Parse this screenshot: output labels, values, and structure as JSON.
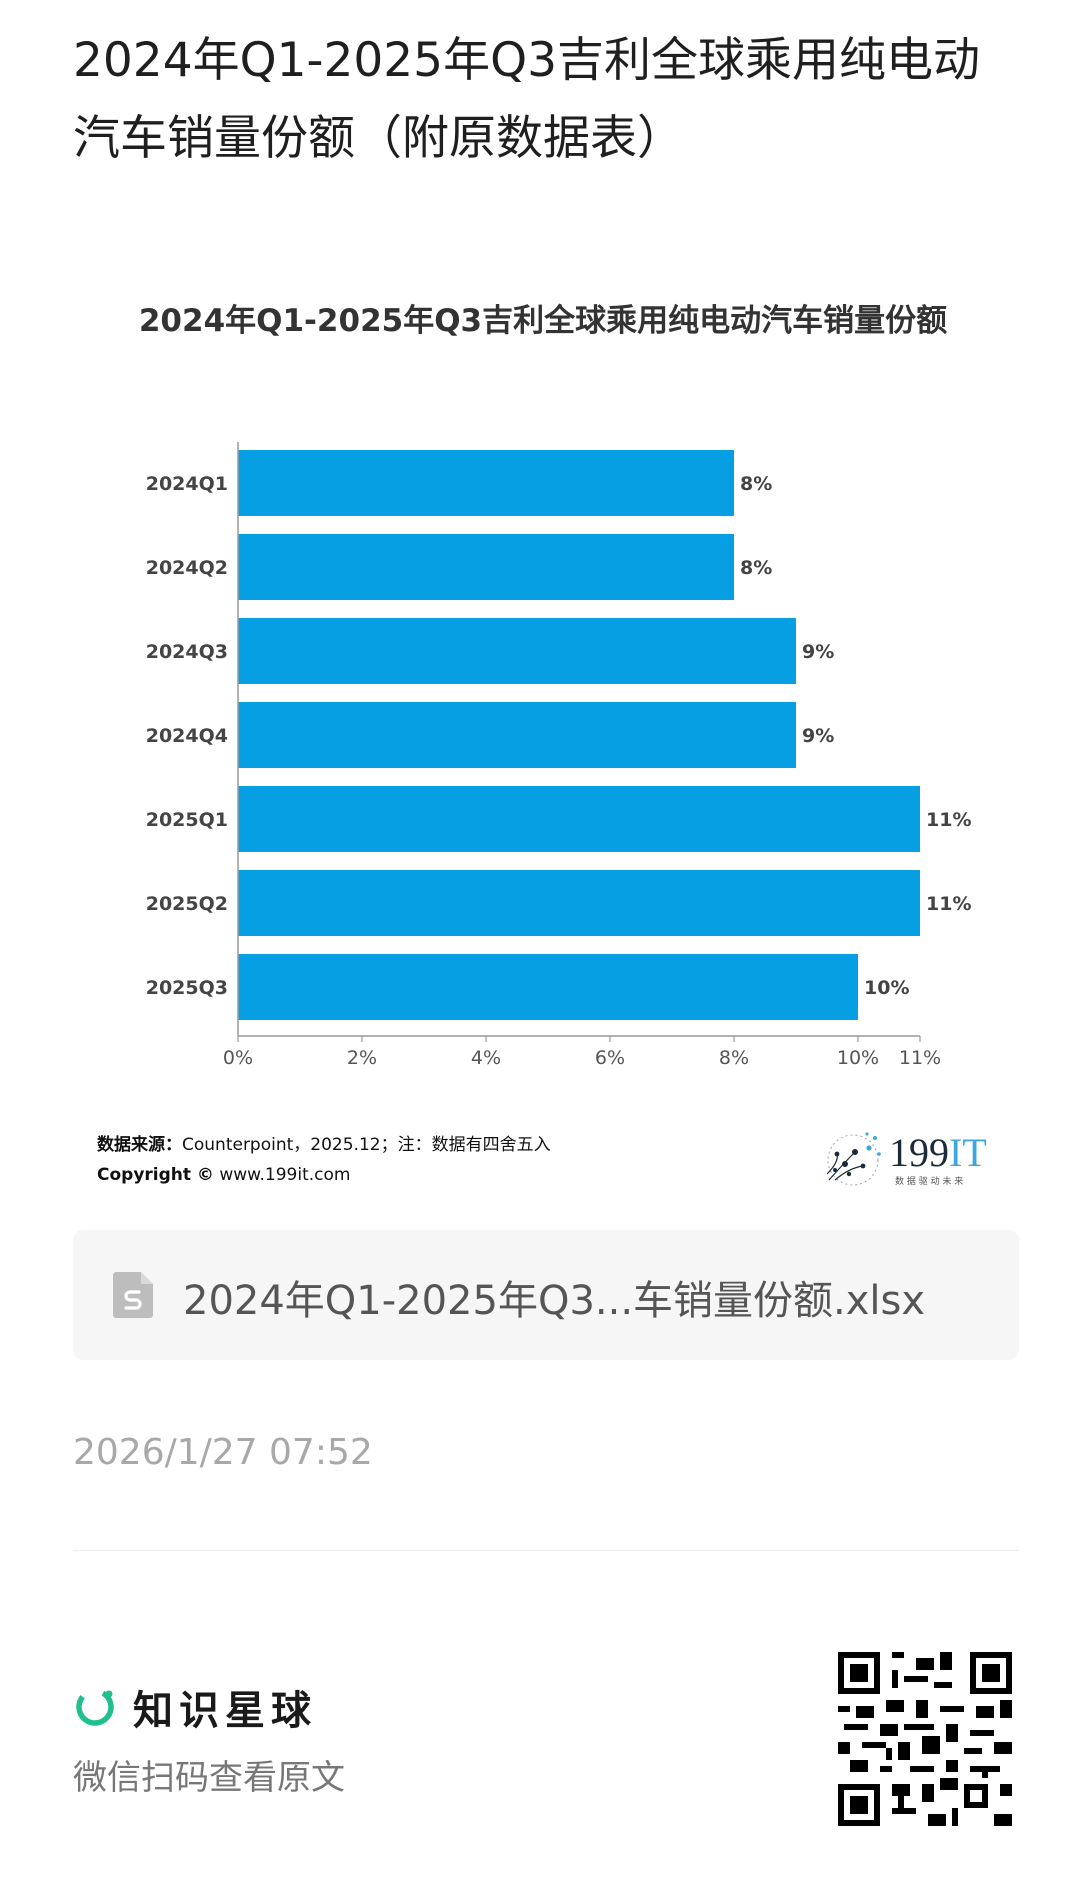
{
  "post": {
    "title": "2024年Q1-2025年Q3吉利全球乘用纯电动汽车销量份额（附原数据表）",
    "date": "2026/1/27 07:52"
  },
  "chart_data": {
    "type": "bar",
    "orientation": "horizontal",
    "title": "2024年Q1-2025年Q3吉利全球乘用纯电动汽车销量份额",
    "categories": [
      "2024Q1",
      "2024Q2",
      "2024Q3",
      "2024Q4",
      "2025Q1",
      "2025Q2",
      "2025Q3"
    ],
    "values": [
      8,
      8,
      9,
      9,
      11,
      11,
      10
    ],
    "data_labels": [
      "8%",
      "8%",
      "9%",
      "9%",
      "11%",
      "11%",
      "10%"
    ],
    "x_ticks": [
      "0%",
      "2%",
      "4%",
      "6%",
      "8%",
      "10%",
      "11%"
    ],
    "x_tick_values": [
      0,
      2,
      4,
      6,
      8,
      10,
      11
    ],
    "xlim": [
      0,
      11
    ],
    "bar_color": "#069fe3",
    "grid": false,
    "legend": "none"
  },
  "source": {
    "label": "数据来源：",
    "text": "Counterpoint，2025.12；注：数据有四舍五入",
    "copyright_label": "Copyright ©",
    "copyright_site": "www.199it.com"
  },
  "logo": {
    "name": "199IT",
    "slogan": "数 据 驱 动 未 来",
    "icon": "dandelion-logo-icon"
  },
  "attachment": {
    "filename": "2024年Q1-2025年Q3...车销量份额.xlsx",
    "icon": "spreadsheet-file-icon"
  },
  "footer": {
    "brand_name": "知识星球",
    "brand_icon": "planet-ring-icon",
    "brand_color": "#1fbf8f",
    "scan_hint": "微信扫码查看原文",
    "qr_icon": "qr-code-icon"
  }
}
